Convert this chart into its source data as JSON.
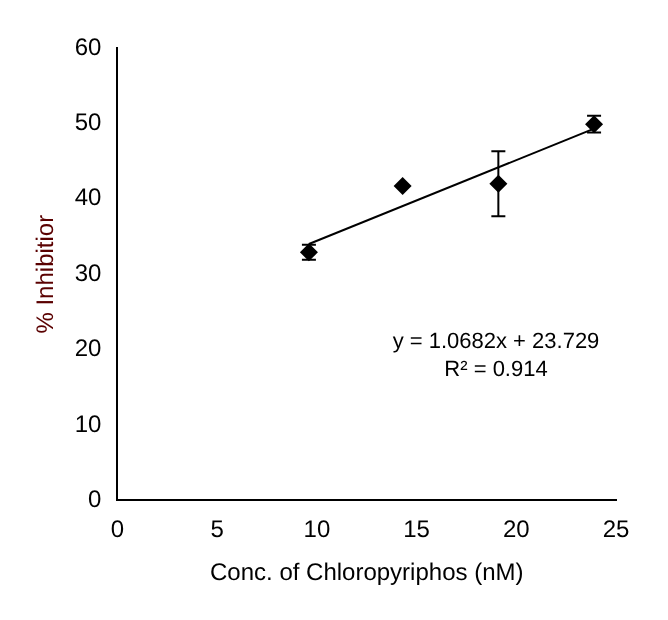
{
  "chart_data": {
    "type": "scatter",
    "xlabel": "Conc. of Chloropyriphos (nM)",
    "ylabel": "% Inhibitior",
    "xlim": [
      0,
      25
    ],
    "xticks": [
      0,
      5,
      10,
      15,
      20,
      25
    ],
    "ylim": [
      0,
      60
    ],
    "yticks": [
      0,
      10,
      20,
      30,
      40,
      50,
      60
    ],
    "grid": false,
    "legend": false,
    "marker": "diamond",
    "series": [
      {
        "color": "#000000",
        "x": [
          9.6,
          14.3,
          19.1,
          23.9
        ],
        "values": [
          32.9,
          41.7,
          42.0,
          49.9
        ],
        "errors": [
          1.0,
          null,
          4.3,
          1.1
        ]
      },
      {
        "type": "line",
        "color": "#000000",
        "marker": "none",
        "line_style": "solid",
        "x": [
          9.6,
          23.9
        ],
        "values": [
          34.0,
          49.3
        ]
      }
    ],
    "annotations": [
      "y = 1.0682x + 23.729",
      "R² = 0.914"
    ]
  }
}
